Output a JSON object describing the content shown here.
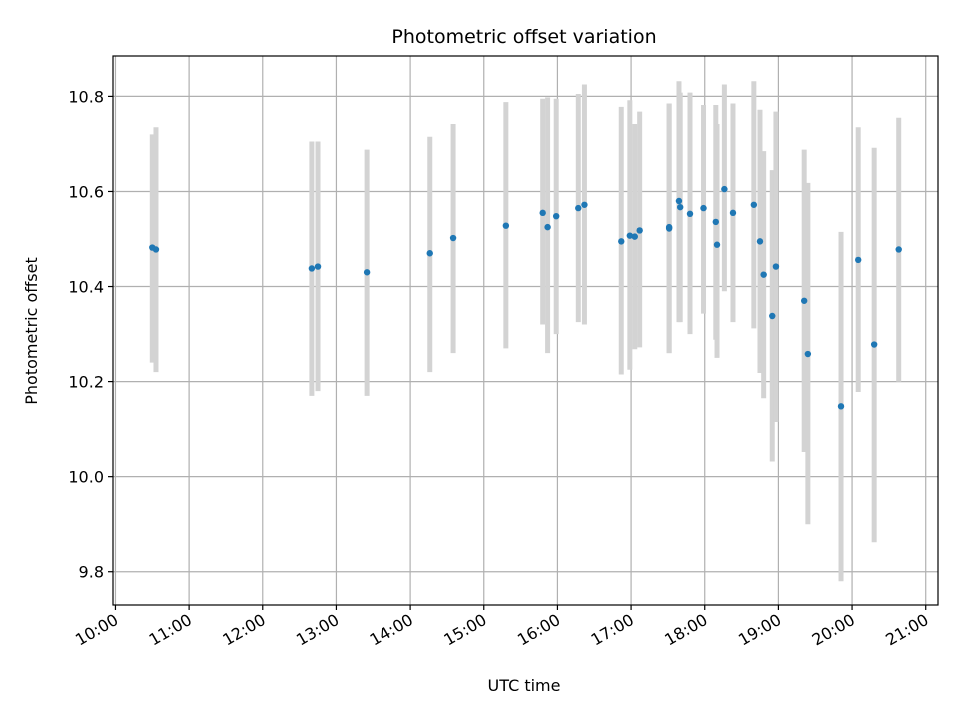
{
  "chart_data": {
    "type": "scatter",
    "title": "Photometric offset variation",
    "xlabel": "UTC time",
    "ylabel": "Photometric offset",
    "grid": true,
    "x_ticks": [
      "10:00",
      "11:00",
      "12:00",
      "13:00",
      "14:00",
      "15:00",
      "16:00",
      "17:00",
      "18:00",
      "19:00",
      "20:00",
      "21:00"
    ],
    "y_ticks": [
      "9.8",
      "10.0",
      "10.2",
      "10.4",
      "10.6",
      "10.8"
    ],
    "xlim": [
      "09:58",
      "21:10"
    ],
    "ylim": [
      9.73,
      10.885
    ],
    "point_color": "#1f77b4",
    "errorbar_color": "#d3d3d3",
    "points": [
      {
        "t": "10:30",
        "y": 10.482,
        "lo": 10.24,
        "hi": 10.72
      },
      {
        "t": "10:33",
        "y": 10.478,
        "lo": 10.22,
        "hi": 10.735
      },
      {
        "t": "12:40",
        "y": 10.438,
        "lo": 10.17,
        "hi": 10.705
      },
      {
        "t": "12:45",
        "y": 10.442,
        "lo": 10.18,
        "hi": 10.705
      },
      {
        "t": "13:25",
        "y": 10.43,
        "lo": 10.17,
        "hi": 10.688
      },
      {
        "t": "14:16",
        "y": 10.47,
        "lo": 10.22,
        "hi": 10.715
      },
      {
        "t": "14:35",
        "y": 10.502,
        "lo": 10.26,
        "hi": 10.742
      },
      {
        "t": "15:18",
        "y": 10.528,
        "lo": 10.27,
        "hi": 10.788
      },
      {
        "t": "15:48",
        "y": 10.555,
        "lo": 10.32,
        "hi": 10.795
      },
      {
        "t": "15:52",
        "y": 10.525,
        "lo": 10.26,
        "hi": 10.798
      },
      {
        "t": "15:59",
        "y": 10.548,
        "lo": 10.3,
        "hi": 10.795
      },
      {
        "t": "16:17",
        "y": 10.565,
        "lo": 10.325,
        "hi": 10.805
      },
      {
        "t": "16:22",
        "y": 10.572,
        "lo": 10.32,
        "hi": 10.825
      },
      {
        "t": "16:52",
        "y": 10.495,
        "lo": 10.215,
        "hi": 10.778
      },
      {
        "t": "16:59",
        "y": 10.507,
        "lo": 10.225,
        "hi": 10.792
      },
      {
        "t": "17:03",
        "y": 10.505,
        "lo": 10.268,
        "hi": 10.742
      },
      {
        "t": "17:07",
        "y": 10.518,
        "lo": 10.272,
        "hi": 10.768
      },
      {
        "t": "17:31",
        "y": 10.522,
        "lo": 10.26,
        "hi": 10.785
      },
      {
        "t": "17:31",
        "y": 10.525,
        "lo": 10.26,
        "hi": 10.785
      },
      {
        "t": "17:39",
        "y": 10.58,
        "lo": 10.325,
        "hi": 10.832
      },
      {
        "t": "17:40",
        "y": 10.567,
        "lo": 10.325,
        "hi": 10.808
      },
      {
        "t": "17:48",
        "y": 10.553,
        "lo": 10.3,
        "hi": 10.808
      },
      {
        "t": "17:59",
        "y": 10.565,
        "lo": 10.343,
        "hi": 10.782
      },
      {
        "t": "18:09",
        "y": 10.536,
        "lo": 10.288,
        "hi": 10.782
      },
      {
        "t": "18:10",
        "y": 10.488,
        "lo": 10.25,
        "hi": 10.742
      },
      {
        "t": "18:16",
        "y": 10.605,
        "lo": 10.39,
        "hi": 10.825
      },
      {
        "t": "18:23",
        "y": 10.555,
        "lo": 10.325,
        "hi": 10.785
      },
      {
        "t": "18:40",
        "y": 10.572,
        "lo": 10.312,
        "hi": 10.832
      },
      {
        "t": "18:45",
        "y": 10.495,
        "lo": 10.218,
        "hi": 10.772
      },
      {
        "t": "18:48",
        "y": 10.425,
        "lo": 10.165,
        "hi": 10.685
      },
      {
        "t": "18:55",
        "y": 10.338,
        "lo": 10.032,
        "hi": 10.645
      },
      {
        "t": "18:58",
        "y": 10.442,
        "lo": 10.115,
        "hi": 10.768
      },
      {
        "t": "19:21",
        "y": 10.37,
        "lo": 10.052,
        "hi": 10.688
      },
      {
        "t": "19:24",
        "y": 10.258,
        "lo": 9.9,
        "hi": 10.618
      },
      {
        "t": "19:51",
        "y": 10.148,
        "lo": 9.78,
        "hi": 10.515
      },
      {
        "t": "20:05",
        "y": 10.456,
        "lo": 10.178,
        "hi": 10.735
      },
      {
        "t": "20:18",
        "y": 10.278,
        "lo": 9.862,
        "hi": 10.692
      },
      {
        "t": "20:38",
        "y": 10.478,
        "lo": 10.2,
        "hi": 10.755
      }
    ]
  }
}
